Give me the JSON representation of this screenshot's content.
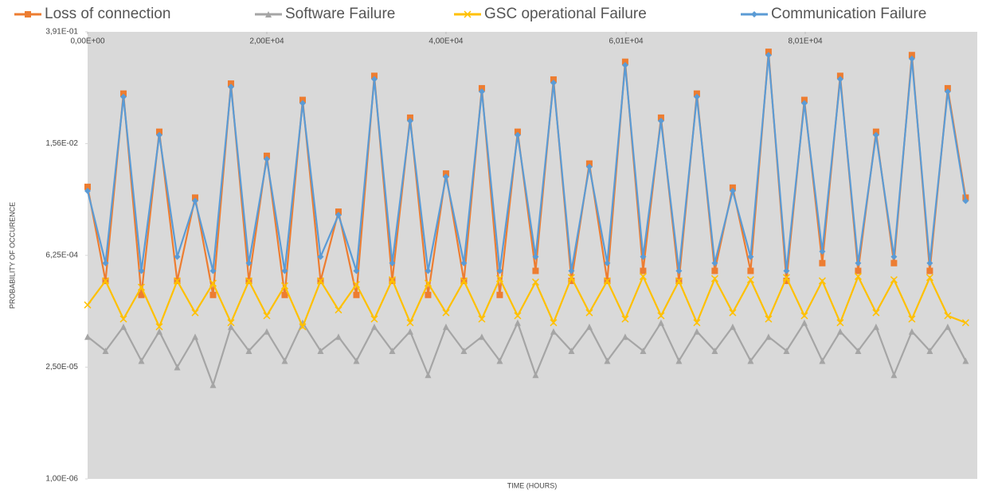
{
  "chart_data": {
    "type": "line",
    "x_label": "TIME (HOURS)",
    "y_label": "PROBABILITY OF OCCURENCE",
    "log_scale": true,
    "xlim": [
      0,
      99300
    ],
    "xticks": [
      {
        "value": 0,
        "label": "0,00E+00"
      },
      {
        "value": 20000,
        "label": "2,00E+04"
      },
      {
        "value": 40000,
        "label": "4,00E+04"
      },
      {
        "value": 60100,
        "label": "6,01E+04"
      },
      {
        "value": 80100,
        "label": "8,01E+04"
      }
    ],
    "ylim": [
      1e-06,
      0.391
    ],
    "yticks": [
      {
        "value": 1e-06,
        "label": "1,00E-06"
      },
      {
        "value": 2.5e-05,
        "label": "2,50E-05"
      },
      {
        "value": 0.000625,
        "label": "6,25E-04"
      },
      {
        "value": 0.0156,
        "label": "1,56E-02"
      },
      {
        "value": 0.391,
        "label": "3,91E-01"
      }
    ],
    "x": [
      0,
      2000,
      4000,
      6000,
      8000,
      10000,
      12000,
      14000,
      16000,
      18000,
      20000,
      22000,
      24000,
      26000,
      28000,
      30000,
      32000,
      34000,
      36000,
      38000,
      40000,
      42000,
      44000,
      46000,
      48000,
      50000,
      52000,
      54000,
      56000,
      58000,
      60000,
      62000,
      64000,
      66000,
      68000,
      70000,
      72000,
      74000,
      76000,
      78000,
      80000,
      82000,
      84000,
      86000,
      88000,
      90000,
      92000,
      94000,
      96000,
      98000
    ],
    "series": [
      {
        "name": "Loss of connection",
        "color": "#ed7d31",
        "marker": "square",
        "values": [
          0.0045,
          0.0003,
          0.066,
          0.0002,
          0.022,
          0.0003,
          0.0033,
          0.0002,
          0.088,
          0.0003,
          0.011,
          0.0002,
          0.055,
          0.0003,
          0.0022,
          0.0002,
          0.11,
          0.0003,
          0.033,
          0.0002,
          0.0066,
          0.0003,
          0.077,
          0.0002,
          0.022,
          0.0004,
          0.099,
          0.0003,
          0.0088,
          0.0003,
          0.165,
          0.0004,
          0.033,
          0.0003,
          0.066,
          0.0004,
          0.0044,
          0.0004,
          0.22,
          0.0003,
          0.055,
          0.0005,
          0.11,
          0.0004,
          0.022,
          0.0005,
          0.2,
          0.0004,
          0.077,
          0.0033
        ]
      },
      {
        "name": "Software Failure",
        "color": "#a5a5a5",
        "marker": "triangle",
        "values": [
          6e-05,
          4e-05,
          8e-05,
          3e-05,
          7e-05,
          2.5e-05,
          6e-05,
          1.5e-05,
          8e-05,
          4e-05,
          7e-05,
          3e-05,
          9e-05,
          4e-05,
          6e-05,
          3e-05,
          8e-05,
          4e-05,
          7e-05,
          2e-05,
          8e-05,
          4e-05,
          6e-05,
          3e-05,
          9e-05,
          2e-05,
          7e-05,
          4e-05,
          8e-05,
          3e-05,
          6e-05,
          4e-05,
          9e-05,
          3e-05,
          7e-05,
          4e-05,
          8e-05,
          3e-05,
          6e-05,
          4e-05,
          9e-05,
          3e-05,
          7e-05,
          4e-05,
          8e-05,
          2e-05,
          7e-05,
          4e-05,
          8e-05,
          3e-05
        ]
      },
      {
        "name": "GSC operational Failure",
        "color": "#ffc000",
        "marker": "x",
        "values": [
          0.00015,
          0.0003,
          0.0001,
          0.00025,
          8e-05,
          0.0003,
          0.00012,
          0.00028,
          9e-05,
          0.0003,
          0.00011,
          0.00026,
          8e-05,
          0.0003,
          0.00013,
          0.00027,
          0.0001,
          0.00031,
          9e-05,
          0.00028,
          0.00012,
          0.0003,
          0.0001,
          0.00032,
          0.00011,
          0.00029,
          9e-05,
          0.00033,
          0.00012,
          0.0003,
          0.0001,
          0.00034,
          0.00011,
          0.0003,
          9e-05,
          0.00032,
          0.00012,
          0.00031,
          0.0001,
          0.00033,
          0.00011,
          0.0003,
          9e-05,
          0.00034,
          0.00012,
          0.00031,
          0.0001,
          0.00033,
          0.00011,
          9e-05
        ]
      },
      {
        "name": "Communication Failure",
        "color": "#5b9bd5",
        "marker": "diamond",
        "values": [
          0.004,
          0.0005,
          0.06,
          0.0004,
          0.02,
          0.0006,
          0.003,
          0.0004,
          0.08,
          0.0005,
          0.01,
          0.0004,
          0.05,
          0.0006,
          0.002,
          0.0004,
          0.1,
          0.0005,
          0.03,
          0.0004,
          0.006,
          0.0005,
          0.07,
          0.0004,
          0.02,
          0.0006,
          0.09,
          0.0004,
          0.008,
          0.0005,
          0.15,
          0.0006,
          0.03,
          0.0004,
          0.06,
          0.0005,
          0.004,
          0.0006,
          0.2,
          0.0004,
          0.05,
          0.0007,
          0.1,
          0.0005,
          0.02,
          0.0006,
          0.18,
          0.0005,
          0.07,
          0.003
        ]
      }
    ]
  }
}
